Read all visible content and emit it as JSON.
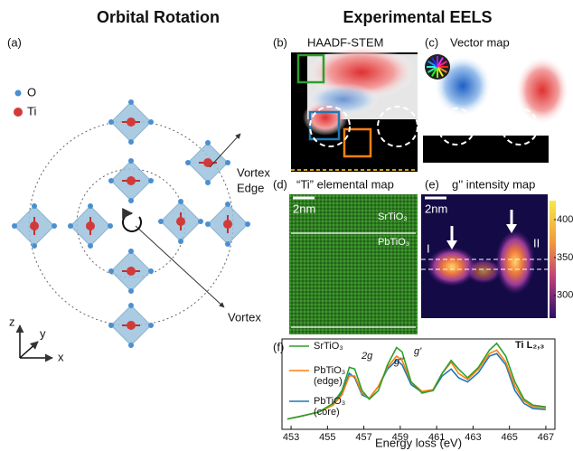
{
  "header": {
    "left_title": "Orbital Rotation",
    "right_title": "Experimental EELS"
  },
  "panel_a": {
    "label": "(a)",
    "legend": [
      "O",
      "Ti"
    ],
    "vortex_edge": [
      "Vortex",
      "Edge"
    ],
    "vortex": "Vortex",
    "axes": [
      "z",
      "y",
      "x"
    ]
  },
  "panel_b": {
    "label": "(b)",
    "title": "HAADF-STEM"
  },
  "panel_c": {
    "label": "(c)",
    "title": "Vector map"
  },
  "panel_d": {
    "label": "(d)",
    "title": "“Ti” elemental map",
    "scale_bar": "2nm",
    "layers": [
      "SrTiO₃",
      "PbTiO₃"
    ]
  },
  "panel_e": {
    "label": "(e)",
    "title": "g'' intensity map",
    "scale_bar": "2nm",
    "regions": [
      "I",
      "II"
    ],
    "colorbar": {
      "lim": [
        270,
        425
      ],
      "ticks": [
        400,
        350,
        300
      ]
    }
  },
  "chart_data": {
    "type": "line",
    "label": "(f)",
    "x_label": "Energy loss (eV)",
    "annotations": [
      "2g",
      "g''",
      "g'",
      "Ti L₂,₃"
    ],
    "x": [
      452.8,
      453.5,
      454.5,
      455.3,
      455.8,
      456.2,
      456.5,
      456.9,
      457.3,
      457.8,
      458.3,
      458.8,
      459.1,
      459.6,
      460.2,
      460.8,
      461.3,
      461.8,
      462.2,
      462.7,
      463.3,
      463.9,
      464.3,
      464.8,
      465.3,
      465.8,
      466.3,
      467
    ],
    "xlim": [
      452.5,
      467.5
    ],
    "xticks": [
      453,
      455,
      457,
      459,
      461,
      463,
      465,
      467
    ],
    "ylim": [
      0,
      1.05
    ],
    "series": [
      {
        "name": "SrTiO₃",
        "color": "#2ca02c",
        "values": [
          0.12,
          0.15,
          0.2,
          0.3,
          0.45,
          0.72,
          0.7,
          0.45,
          0.35,
          0.45,
          0.75,
          0.95,
          0.9,
          0.55,
          0.42,
          0.45,
          0.65,
          0.8,
          0.7,
          0.6,
          0.72,
          0.92,
          1.0,
          0.85,
          0.55,
          0.35,
          0.28,
          0.26
        ]
      },
      {
        "name": "PbTiO₃",
        "detail": "(edge)",
        "color": "#ff7f0e",
        "values": [
          0.12,
          0.15,
          0.2,
          0.28,
          0.4,
          0.62,
          0.62,
          0.42,
          0.36,
          0.5,
          0.72,
          0.85,
          0.8,
          0.55,
          0.44,
          0.46,
          0.65,
          0.78,
          0.65,
          0.58,
          0.7,
          0.88,
          0.92,
          0.78,
          0.5,
          0.33,
          0.26,
          0.25
        ]
      },
      {
        "name": "PbTiO₃",
        "detail": "(core)",
        "color": "#1f77b4",
        "values": [
          0.12,
          0.15,
          0.2,
          0.28,
          0.42,
          0.65,
          0.6,
          0.4,
          0.36,
          0.5,
          0.7,
          0.8,
          0.75,
          0.52,
          0.43,
          0.45,
          0.62,
          0.7,
          0.6,
          0.55,
          0.66,
          0.85,
          0.88,
          0.75,
          0.45,
          0.3,
          0.24,
          0.23
        ]
      }
    ]
  }
}
